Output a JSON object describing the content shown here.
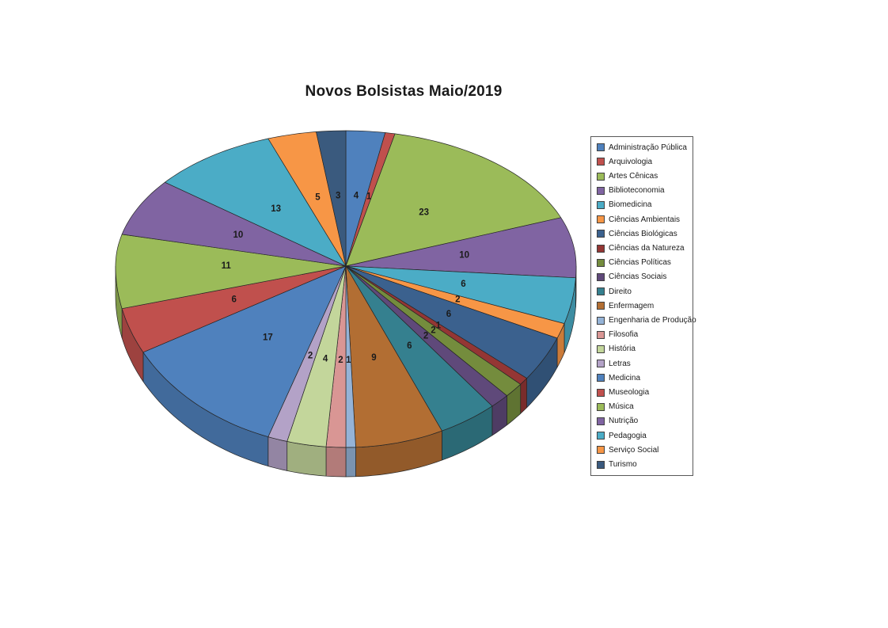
{
  "title": "Novos Bolsistas Maio/2019",
  "chart_data": {
    "type": "pie",
    "projection": "3d",
    "title": "Novos Bolsistas Maio/2019",
    "legend_position": "right",
    "data_labels": "value",
    "start_angle_deg": 0,
    "direction": "clockwise",
    "total": 146,
    "categories": [
      "Administração Pública",
      "Arquivologia",
      "Artes Cênicas",
      "Biblioteconomia",
      "Biomedicina",
      "Ciências Ambientais",
      "Ciências Biológicas",
      "Ciências da Natureza",
      "Ciências Políticas",
      "Ciências Sociais",
      "Direito",
      "Enfermagem",
      "Engenharia de Produção",
      "Filosofia",
      "História",
      "Letras",
      "Medicina",
      "Museologia",
      "Música",
      "Nutrição",
      "Pedagogia",
      "Serviço Social",
      "Turismo"
    ],
    "values": [
      4,
      1,
      23,
      10,
      6,
      2,
      6,
      1,
      2,
      2,
      6,
      9,
      1,
      2,
      4,
      2,
      17,
      6,
      11,
      10,
      13,
      5,
      3
    ],
    "colors": [
      "#4F81BD",
      "#C0504D",
      "#9BBB59",
      "#8064A2",
      "#4BACC6",
      "#F79646",
      "#3B618E",
      "#943634",
      "#748C3D",
      "#5F497A",
      "#35808F",
      "#B26E33",
      "#95B3D7",
      "#D99694",
      "#C3D69B",
      "#B3A2C7",
      "#4F81BD",
      "#C0504D",
      "#9BBB59",
      "#8064A2",
      "#4BACC6",
      "#F79646",
      "#3A5A7E"
    ]
  },
  "colors": {
    "background": "#FFFFFF",
    "title_text": "#1A1A1A",
    "data_label_text": "#1B1B1B",
    "slice_outline": "#262626",
    "legend_border": "#595959",
    "legend_text": "#1A1A1A",
    "swatch_border": "#404040"
  }
}
